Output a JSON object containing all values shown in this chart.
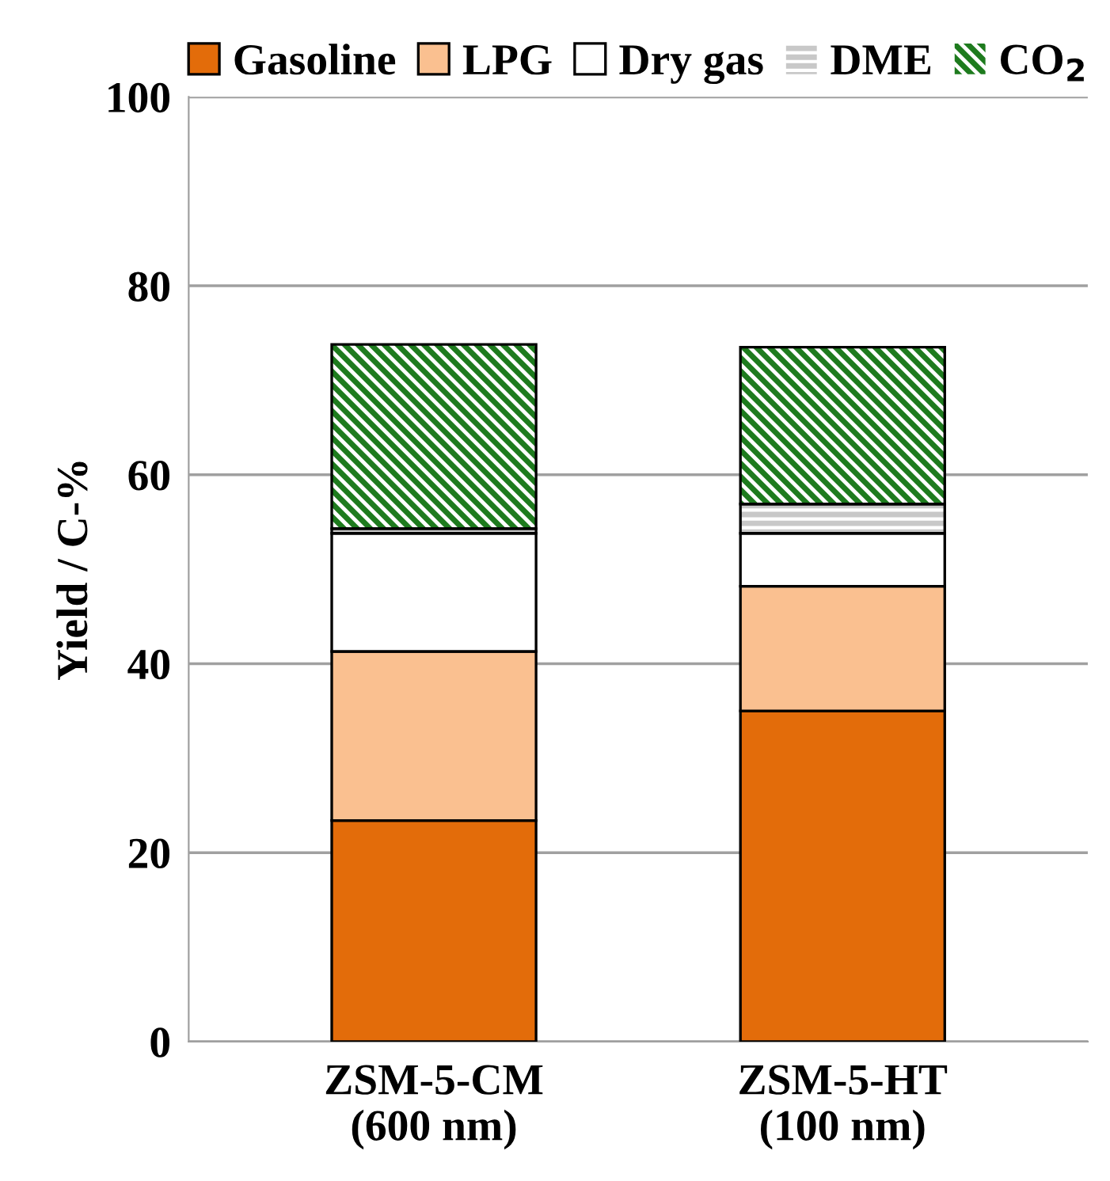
{
  "chart_data": {
    "type": "bar",
    "stacked": true,
    "ylabel": "Yield / C-%",
    "categories": [
      "ZSM-5-CM\n(600 nm)",
      "ZSM-5-HT\n(100 nm)"
    ],
    "series": [
      {
        "name": "Gasoline",
        "color": "#e36c0a",
        "values": [
          23.4,
          35.0
        ]
      },
      {
        "name": "LPG",
        "color": "#fac090",
        "values": [
          17.9,
          13.2
        ]
      },
      {
        "name": "Dry gas",
        "color": "#ffffff",
        "values": [
          12.5,
          5.6
        ]
      },
      {
        "name": "DME",
        "color": "#c8c8c8",
        "values": [
          0.5,
          3.1
        ]
      },
      {
        "name": "CO$_{2}$",
        "color": "#1e7b1e",
        "values": [
          19.5,
          16.6
        ]
      }
    ],
    "ylim": [
      0,
      100
    ],
    "yticks": [
      0,
      20,
      40,
      60,
      80,
      100
    ],
    "grid": "y",
    "legend": "top"
  }
}
